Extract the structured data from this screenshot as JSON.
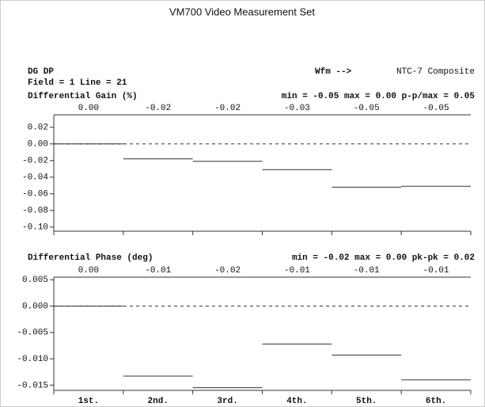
{
  "header": {
    "title": "VM700 Video Measurement Set",
    "mode": "DG DP",
    "field_line": "Field = 1 Line =  21",
    "wfm": "Wfm -->",
    "signal": "NTC-7 Composite"
  },
  "chart_data": [
    {
      "type": "step",
      "title": "Differential Gain (%)",
      "stats": "min = -0.05  max =  0.00  p-p/max =  0.05",
      "values": [
        0,
        -0.018,
        -0.021,
        -0.031,
        -0.052,
        -0.051
      ],
      "value_labels": [
        "0.00",
        "-0.02",
        "-0.02",
        "-0.03",
        "-0.05",
        "-0.05"
      ],
      "color": "#000000",
      "ylim": [
        -0.105,
        0.035
      ],
      "yticks": [
        0.02,
        {
          "value": 0,
          "label": "0.00"
        },
        -0.02,
        -0.04,
        -0.06,
        -0.08,
        {
          "value": -0.1,
          "label": "-0.10"
        }
      ]
    },
    {
      "type": "step",
      "title": "Differential Phase (deg)",
      "stats": "min = -0.02  max =  0.00  pk-pk =  0.02",
      "categories": [
        "1st.",
        "2nd.",
        "3rd.",
        "4th.",
        "5th.",
        "6th."
      ],
      "values": [
        0,
        -0.0133,
        -0.0155,
        -0.0072,
        -0.0093,
        -0.014
      ],
      "value_labels": [
        "0.00",
        "-0.01",
        "-0.02",
        "-0.01",
        "-0.01",
        "-0.01"
      ],
      "color": "#000000",
      "ylim": [
        -0.016,
        0.0055
      ],
      "yticks": [
        0.005,
        {
          "value": 0,
          "label": "0.000"
        },
        -0.005,
        {
          "value": -0.01,
          "label": "-0.010"
        },
        -0.015
      ]
    }
  ]
}
